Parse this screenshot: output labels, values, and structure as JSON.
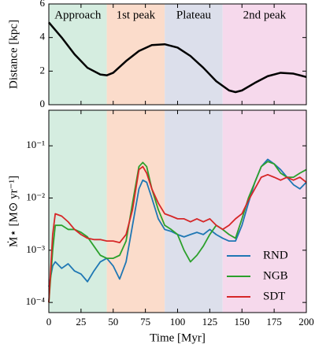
{
  "chart_data": [
    {
      "type": "line",
      "y_label": "Distance [kpc]",
      "color": "#000000",
      "regions": [
        {
          "label": "Approach",
          "x0": 0,
          "x1": 45,
          "color": "#d5ede0"
        },
        {
          "label": "1st peak",
          "x0": 45,
          "x1": 90,
          "color": "#fbdccb"
        },
        {
          "label": "Plateau",
          "x0": 90,
          "x1": 135,
          "color": "#dcdfeb"
        },
        {
          "label": "2nd peak",
          "x0": 135,
          "x1": 200,
          "color": "#f6d9ec"
        }
      ],
      "x": [
        0,
        10,
        20,
        30,
        40,
        45,
        50,
        60,
        70,
        80,
        90,
        100,
        110,
        120,
        130,
        140,
        145,
        150,
        160,
        170,
        180,
        190,
        200
      ],
      "values": [
        4.9,
        4.0,
        3.0,
        2.2,
        1.8,
        1.75,
        1.9,
        2.6,
        3.2,
        3.55,
        3.6,
        3.4,
        2.9,
        2.2,
        1.4,
        0.85,
        0.75,
        0.85,
        1.3,
        1.7,
        1.9,
        1.85,
        1.65
      ],
      "xlim": [
        0,
        200
      ],
      "ylim": [
        0,
        6
      ],
      "yticks": [
        0,
        2,
        4,
        6
      ]
    },
    {
      "type": "line",
      "x_label": "Time [Myr]",
      "y_label": "Ṁ⋆ [M⊙ yr⁻¹]",
      "log_y": true,
      "legend": "lower right",
      "x": [
        0,
        3,
        5,
        10,
        15,
        20,
        25,
        30,
        35,
        40,
        45,
        50,
        55,
        60,
        65,
        70,
        73,
        76,
        80,
        85,
        90,
        95,
        100,
        105,
        110,
        115,
        120,
        125,
        130,
        135,
        140,
        145,
        150,
        155,
        160,
        165,
        170,
        175,
        180,
        185,
        190,
        195,
        200
      ],
      "series": [
        {
          "name": "RND",
          "color": "#1f77b4",
          "values": [
            0.0002,
            0.0005,
            0.0006,
            0.00045,
            0.00055,
            0.0004,
            0.00035,
            0.00025,
            0.0004,
            0.0006,
            0.0007,
            0.0005,
            0.00028,
            0.0006,
            0.003,
            0.015,
            0.022,
            0.02,
            0.01,
            0.004,
            0.0025,
            0.0023,
            0.002,
            0.0018,
            0.002,
            0.0022,
            0.002,
            0.0025,
            0.002,
            0.0017,
            0.0015,
            0.0015,
            0.003,
            0.008,
            0.02,
            0.04,
            0.055,
            0.045,
            0.035,
            0.025,
            0.018,
            0.015,
            0.02
          ]
        },
        {
          "name": "NGB",
          "color": "#2ca02c",
          "values": [
            0.0001,
            0.001,
            0.003,
            0.003,
            0.0025,
            0.0025,
            0.0022,
            0.0018,
            0.0012,
            0.0008,
            0.0007,
            0.0007,
            0.0008,
            0.0015,
            0.008,
            0.04,
            0.048,
            0.04,
            0.015,
            0.006,
            0.003,
            0.0025,
            0.002,
            0.001,
            0.0006,
            0.0008,
            0.0012,
            0.002,
            0.003,
            0.0025,
            0.002,
            0.0017,
            0.004,
            0.01,
            0.02,
            0.04,
            0.05,
            0.045,
            0.03,
            0.025,
            0.025,
            0.03,
            0.035
          ]
        },
        {
          "name": "SDT",
          "color": "#d62728",
          "values": [
            0.0001,
            0.002,
            0.005,
            0.0045,
            0.0035,
            0.0025,
            0.002,
            0.0017,
            0.0016,
            0.0016,
            0.0015,
            0.0015,
            0.0014,
            0.002,
            0.006,
            0.035,
            0.04,
            0.03,
            0.015,
            0.008,
            0.005,
            0.0045,
            0.004,
            0.004,
            0.0035,
            0.004,
            0.0035,
            0.004,
            0.003,
            0.0025,
            0.003,
            0.004,
            0.005,
            0.009,
            0.015,
            0.025,
            0.028,
            0.025,
            0.022,
            0.025,
            0.022,
            0.025,
            0.02
          ]
        }
      ],
      "xlim": [
        0,
        200
      ],
      "xticks": [
        0,
        25,
        50,
        75,
        100,
        125,
        150,
        175,
        200
      ],
      "ylim": [
        6.4e-05,
        0.48
      ],
      "yticks": [
        {
          "value": 0.0001,
          "label": "10⁻⁴"
        },
        {
          "value": 0.001,
          "label": "10⁻³"
        },
        {
          "value": 0.01,
          "label": "10⁻²"
        },
        {
          "value": 0.1,
          "label": "10⁻¹"
        }
      ]
    }
  ]
}
